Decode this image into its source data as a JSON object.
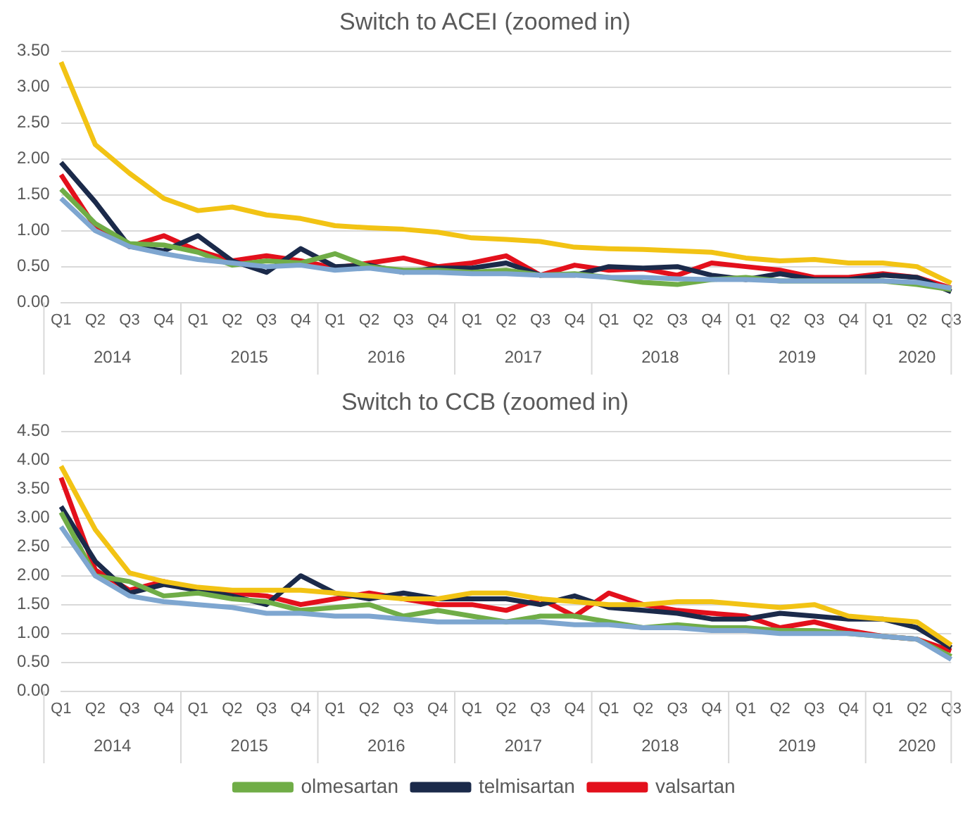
{
  "chart_data": [
    {
      "type": "line",
      "title": "Switch to ACEI (zoomed in)",
      "categories": [
        "Q1",
        "Q2",
        "Q3",
        "Q4",
        "Q1",
        "Q2",
        "Q3",
        "Q4",
        "Q1",
        "Q2",
        "Q3",
        "Q4",
        "Q1",
        "Q2",
        "Q3",
        "Q4",
        "Q1",
        "Q2",
        "Q3",
        "Q4",
        "Q1",
        "Q2",
        "Q3",
        "Q4",
        "Q1",
        "Q2",
        "Q3"
      ],
      "annotations": [
        "2014",
        "2015",
        "2016",
        "2017",
        "2018",
        "2019",
        "2020"
      ],
      "ylim": [
        0,
        3.5
      ],
      "yticks": [
        {
          "value": 0,
          "label": "0.00"
        },
        {
          "value": 0.5,
          "label": "0.50"
        },
        {
          "value": 1,
          "label": "1.00"
        },
        {
          "value": 1.5,
          "label": "1.50"
        },
        {
          "value": 2,
          "label": "2.00"
        },
        {
          "value": 2.5,
          "label": "2.50"
        },
        {
          "value": 3,
          "label": "3.00"
        },
        {
          "value": 3.5,
          "label": "3.50"
        }
      ],
      "grid": "y",
      "legend": false,
      "marker": "none",
      "series": [
        {
          "color": "#7ea6d0",
          "values": [
            1.45,
            1.0,
            0.78,
            0.68,
            0.6,
            0.55,
            0.5,
            0.52,
            0.45,
            0.48,
            0.42,
            0.42,
            0.4,
            0.4,
            0.38,
            0.38,
            0.35,
            0.35,
            0.33,
            0.32,
            0.32,
            0.3,
            0.3,
            0.3,
            0.3,
            0.28,
            0.2
          ]
        },
        {
          "color": "#f2c314",
          "values": [
            3.35,
            2.2,
            1.8,
            1.45,
            1.28,
            1.33,
            1.22,
            1.17,
            1.07,
            1.04,
            1.02,
            0.98,
            0.9,
            0.88,
            0.85,
            0.77,
            0.75,
            0.74,
            0.72,
            0.7,
            0.62,
            0.58,
            0.6,
            0.55,
            0.55,
            0.5,
            0.27
          ]
        },
        {
          "color": "#70ad47",
          "values": [
            1.58,
            1.1,
            0.82,
            0.8,
            0.7,
            0.52,
            0.58,
            0.55,
            0.68,
            0.5,
            0.45,
            0.45,
            0.42,
            0.45,
            0.38,
            0.4,
            0.35,
            0.28,
            0.25,
            0.32,
            0.35,
            0.3,
            0.3,
            0.3,
            0.3,
            0.25,
            0.18
          ]
        },
        {
          "color": "#1b2a4a",
          "values": [
            1.95,
            1.4,
            0.78,
            0.72,
            0.93,
            0.58,
            0.42,
            0.75,
            0.5,
            0.52,
            0.42,
            0.48,
            0.48,
            0.55,
            0.38,
            0.38,
            0.5,
            0.48,
            0.5,
            0.38,
            0.32,
            0.4,
            0.32,
            0.32,
            0.38,
            0.35,
            0.15
          ]
        },
        {
          "color": "#e3101c",
          "values": [
            1.78,
            1.05,
            0.78,
            0.93,
            0.72,
            0.58,
            0.65,
            0.58,
            0.48,
            0.55,
            0.62,
            0.5,
            0.55,
            0.65,
            0.38,
            0.52,
            0.45,
            0.47,
            0.38,
            0.55,
            0.5,
            0.45,
            0.35,
            0.35,
            0.4,
            0.35,
            0.2
          ]
        }
      ]
    },
    {
      "type": "line",
      "title": "Switch to CCB (zoomed in)",
      "categories": [
        "Q1",
        "Q2",
        "Q3",
        "Q4",
        "Q1",
        "Q2",
        "Q3",
        "Q4",
        "Q1",
        "Q2",
        "Q3",
        "Q4",
        "Q1",
        "Q2",
        "Q3",
        "Q4",
        "Q1",
        "Q2",
        "Q3",
        "Q4",
        "Q1",
        "Q2",
        "Q3",
        "Q4",
        "Q1",
        "Q2",
        "Q3"
      ],
      "annotations": [
        "2014",
        "2015",
        "2016",
        "2017",
        "2018",
        "2019",
        "2020"
      ],
      "ylim": [
        0,
        4.5
      ],
      "yticks": [
        {
          "value": 0,
          "label": "0.00"
        },
        {
          "value": 0.5,
          "label": "0.50"
        },
        {
          "value": 1,
          "label": "1.00"
        },
        {
          "value": 1.5,
          "label": "1.50"
        },
        {
          "value": 2,
          "label": "2.00"
        },
        {
          "value": 2.5,
          "label": "2.50"
        },
        {
          "value": 3,
          "label": "3.00"
        },
        {
          "value": 3.5,
          "label": "3.50"
        },
        {
          "value": 4,
          "label": "4.00"
        },
        {
          "value": 4.5,
          "label": "4.50"
        }
      ],
      "grid": "y",
      "legend": "bottom",
      "marker": "none",
      "series": [
        {
          "color": "#7ea6d0",
          "values": [
            2.85,
            2.0,
            1.65,
            1.55,
            1.5,
            1.45,
            1.35,
            1.35,
            1.3,
            1.3,
            1.25,
            1.2,
            1.2,
            1.2,
            1.2,
            1.15,
            1.15,
            1.1,
            1.1,
            1.05,
            1.05,
            1.0,
            1.0,
            1.0,
            0.95,
            0.9,
            0.55
          ]
        },
        {
          "color": "#f2c314",
          "values": [
            3.9,
            2.8,
            2.05,
            1.9,
            1.8,
            1.75,
            1.75,
            1.75,
            1.7,
            1.65,
            1.6,
            1.6,
            1.7,
            1.7,
            1.6,
            1.55,
            1.5,
            1.5,
            1.55,
            1.55,
            1.5,
            1.45,
            1.5,
            1.3,
            1.25,
            1.2,
            0.8
          ]
        },
        {
          "name": "olmesartan",
          "color": "#70ad47",
          "values": [
            3.1,
            2.0,
            1.9,
            1.65,
            1.7,
            1.6,
            1.55,
            1.4,
            1.45,
            1.5,
            1.3,
            1.4,
            1.3,
            1.2,
            1.3,
            1.3,
            1.2,
            1.1,
            1.15,
            1.1,
            1.1,
            1.05,
            1.05,
            1.0,
            0.95,
            0.9,
            0.6
          ]
        },
        {
          "name": "telmisartan",
          "color": "#1b2a4a",
          "values": [
            3.2,
            2.25,
            1.7,
            1.85,
            1.75,
            1.65,
            1.5,
            2.0,
            1.7,
            1.6,
            1.7,
            1.6,
            1.6,
            1.6,
            1.5,
            1.65,
            1.45,
            1.4,
            1.35,
            1.25,
            1.25,
            1.35,
            1.3,
            1.25,
            1.25,
            1.1,
            0.75
          ]
        },
        {
          "name": "valsartan",
          "color": "#e3101c",
          "values": [
            3.7,
            2.1,
            1.75,
            1.9,
            1.75,
            1.7,
            1.65,
            1.5,
            1.6,
            1.7,
            1.6,
            1.5,
            1.5,
            1.4,
            1.6,
            1.3,
            1.7,
            1.5,
            1.4,
            1.35,
            1.3,
            1.1,
            1.2,
            1.05,
            0.95,
            0.9,
            0.7
          ]
        }
      ]
    }
  ]
}
